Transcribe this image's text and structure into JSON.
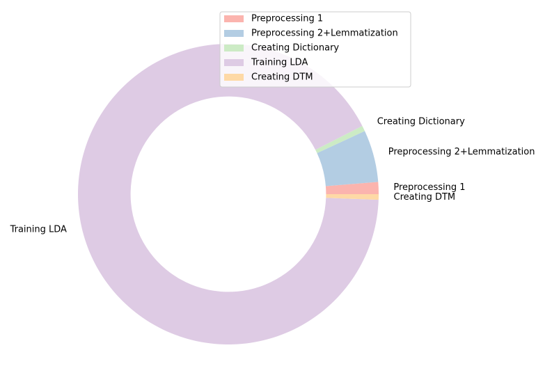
{
  "chart_data": {
    "type": "pie",
    "donut": true,
    "title": "",
    "categories": [
      "Preprocessing 1",
      "Preprocessing 2+Lemmatization",
      "Creating Dictionary",
      "Training LDA",
      "Creating DTM"
    ],
    "values": [
      1.3,
      5.6,
      0.6,
      91.9,
      0.6
    ],
    "value_unit": "percent",
    "colors": [
      "#fbb4ae",
      "#b3cde3",
      "#ccebc5",
      "#decbe4",
      "#fed9a6"
    ],
    "start_angle_deg": 0,
    "direction": "counterclockwise",
    "hole_ratio": 0.65,
    "legend": {
      "placement": "top-right",
      "entries": [
        "Preprocessing 1",
        "Preprocessing 2+Lemmatization",
        "Creating Dictionary",
        "Training LDA",
        "Creating DTM"
      ]
    }
  }
}
